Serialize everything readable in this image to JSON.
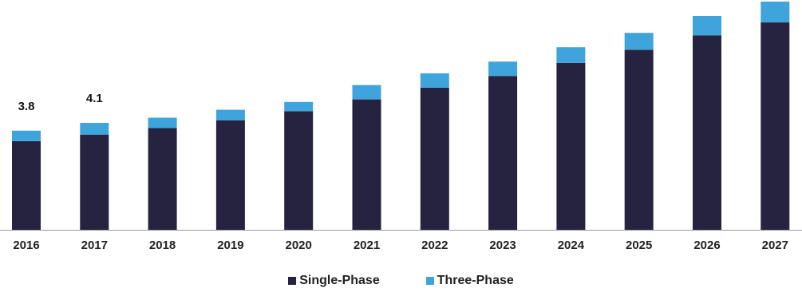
{
  "chart_data": {
    "type": "bar",
    "stacked": true,
    "categories": [
      "2016",
      "2017",
      "2018",
      "2019",
      "2020",
      "2021",
      "2022",
      "2023",
      "2024",
      "2025",
      "2026",
      "2027"
    ],
    "series": [
      {
        "name": "Single-Phase",
        "color": "#25233f",
        "values": [
          3.4,
          3.65,
          3.9,
          4.2,
          4.55,
          5.0,
          5.45,
          5.9,
          6.4,
          6.9,
          7.45,
          7.95
        ]
      },
      {
        "name": "Three-Phase",
        "color": "#3fa4dc",
        "values": [
          0.4,
          0.45,
          0.4,
          0.4,
          0.35,
          0.55,
          0.55,
          0.55,
          0.6,
          0.65,
          0.75,
          0.8
        ]
      }
    ],
    "data_labels": [
      {
        "category": "2016",
        "text": "3.8"
      },
      {
        "category": "2017",
        "text": "4.1"
      }
    ],
    "ylim": [
      0,
      8.75
    ],
    "grid": false,
    "legend_position": "bottom"
  }
}
